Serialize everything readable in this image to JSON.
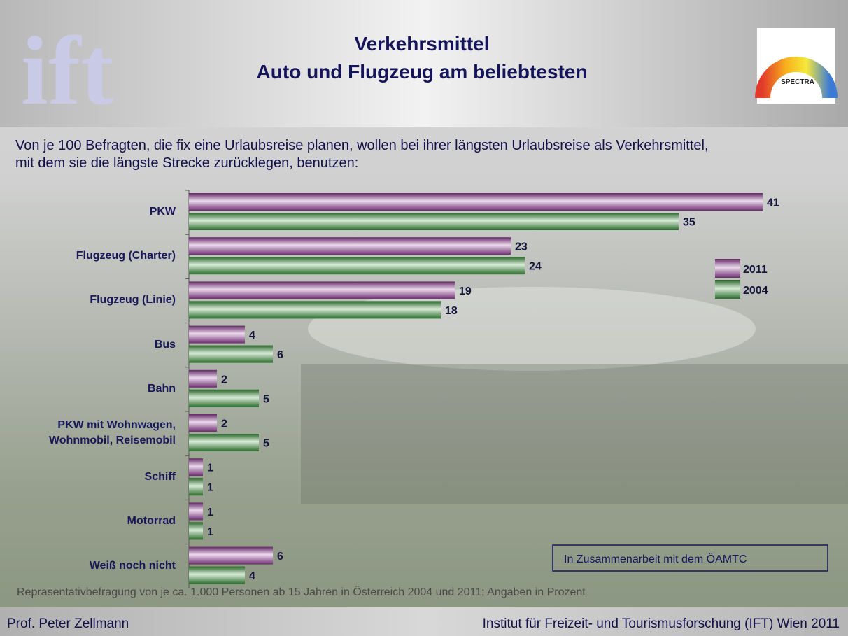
{
  "header": {
    "logo_left": "ift",
    "logo_right": "SPECTRA",
    "title": "Verkehrsmittel",
    "subtitle": "Auto und Flugzeug am beliebtesten"
  },
  "description": [
    "Von je 100 Befragten, die fix eine Urlaubsreise planen, wollen bei ihrer längsten Urlaubsreise als Verkehrsmittel,",
    "mit dem sie die längste Strecke zurücklegen, benutzen:"
  ],
  "chart_data": {
    "type": "bar",
    "orientation": "horizontal",
    "legend": "right",
    "categories": [
      "PKW",
      "Flugzeug (Charter)",
      "Flugzeug (Linie)",
      "Bus",
      "Bahn",
      "PKW mit Wohnwagen, Wohnmobil, Reisemobil",
      "Schiff",
      "Motorrad",
      "Weiß noch nicht"
    ],
    "series": [
      {
        "name": "2011",
        "color": "#9a3f9e",
        "values": [
          41,
          23,
          19,
          4,
          2,
          2,
          1,
          1,
          6
        ]
      },
      {
        "name": "2004",
        "color": "#3d9a3d",
        "values": [
          35,
          24,
          18,
          6,
          5,
          5,
          1,
          1,
          4
        ]
      }
    ]
  },
  "note_box": "In Zusammenarbeit mit dem ÖAMTC",
  "footnote": "Repräsentativbefragung von je ca. 1.000 Personen ab 15 Jahren in Österreich 2004 und  2011; Angaben in Prozent",
  "footer": {
    "left": "Prof. Peter Zellmann",
    "right": "Institut für Freizeit- und Tourismusforschung (IFT) Wien  2011"
  }
}
